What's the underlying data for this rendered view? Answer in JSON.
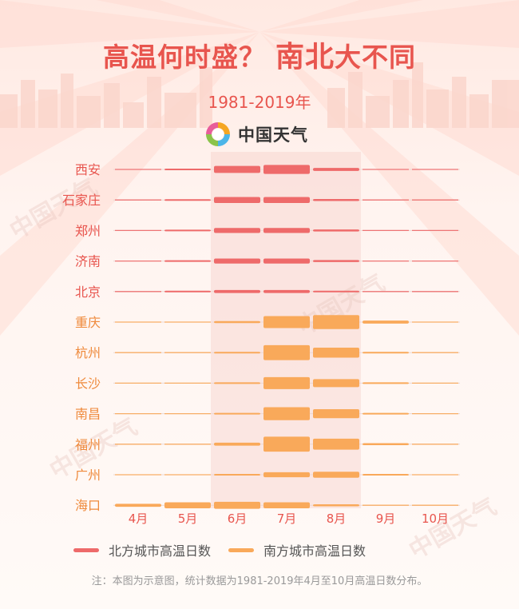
{
  "header": {
    "title_part1": "高温何时盛？",
    "title_part2": "南北",
    "title_part3": "大不同",
    "subtitle": "1981-2019年"
  },
  "logo": {
    "text": "中国天气",
    "icon": "weather-logo-icon"
  },
  "watermark": "中国天气",
  "colors": {
    "north": "#ee6a6a",
    "south": "#f9a95a",
    "north_label": "#e8554e",
    "south_label": "#ef8a3c",
    "highlight": "#f3c7c0"
  },
  "chart_data": {
    "type": "heatmap",
    "categories": [
      "4月",
      "5月",
      "6月",
      "7月",
      "8月",
      "9月",
      "10月"
    ],
    "highlight_months": [
      "6月",
      "7月",
      "8月"
    ],
    "series": [
      {
        "name": "西安",
        "group": "north",
        "values": [
          0,
          1,
          7,
          9,
          3,
          0,
          0
        ]
      },
      {
        "name": "石家庄",
        "group": "north",
        "values": [
          0,
          1,
          6,
          6,
          2,
          0,
          0
        ]
      },
      {
        "name": "郑州",
        "group": "north",
        "values": [
          0,
          1,
          5,
          5,
          2,
          0,
          0
        ]
      },
      {
        "name": "济南",
        "group": "north",
        "values": [
          0,
          1,
          5,
          5,
          2,
          0,
          0
        ]
      },
      {
        "name": "北京",
        "group": "north",
        "values": [
          0,
          1,
          3,
          3,
          1,
          0,
          0
        ]
      },
      {
        "name": "重庆",
        "group": "south",
        "values": [
          0,
          0,
          2,
          12,
          14,
          3,
          0
        ]
      },
      {
        "name": "杭州",
        "group": "south",
        "values": [
          0,
          0,
          1,
          15,
          10,
          1,
          0
        ]
      },
      {
        "name": "长沙",
        "group": "south",
        "values": [
          0,
          0,
          1,
          12,
          8,
          1,
          0
        ]
      },
      {
        "name": "南昌",
        "group": "south",
        "values": [
          0,
          0,
          1,
          13,
          9,
          1,
          0
        ]
      },
      {
        "name": "福州",
        "group": "south",
        "values": [
          0,
          0,
          3,
          15,
          11,
          2,
          0
        ]
      },
      {
        "name": "广州",
        "group": "south",
        "values": [
          0,
          0,
          1,
          5,
          6,
          1,
          0
        ]
      },
      {
        "name": "海口",
        "group": "south",
        "values": [
          3,
          6,
          7,
          6,
          2,
          0,
          0
        ]
      }
    ],
    "legend": [
      {
        "name": "北方城市高温日数",
        "group": "north"
      },
      {
        "name": "南方城市高温日数",
        "group": "south"
      }
    ],
    "note": "注：本图为示意图，统计数据为1981-2019年4月至10月高温日数分布。"
  }
}
